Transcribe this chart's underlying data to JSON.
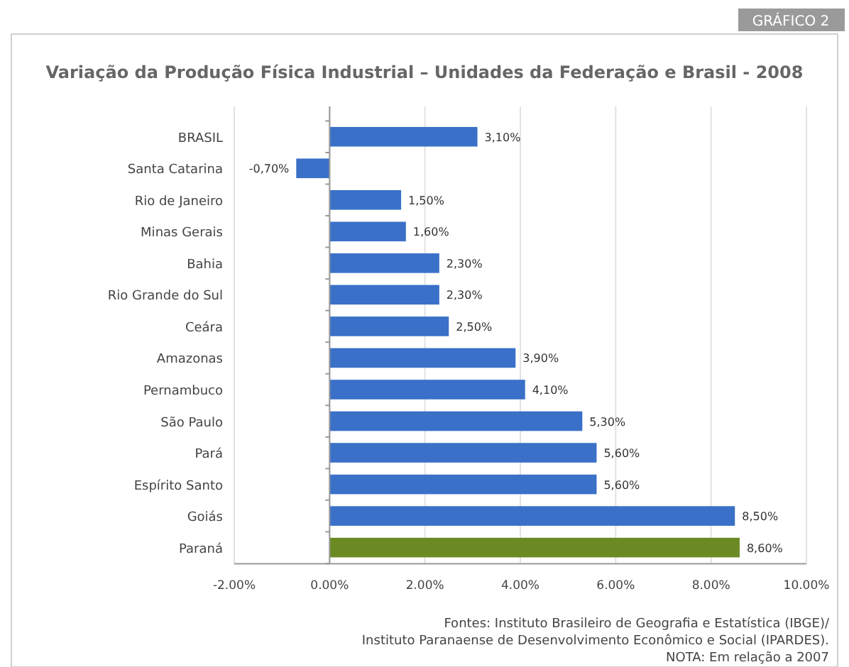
{
  "chart_data": {
    "type": "bar",
    "orientation": "horizontal",
    "title": "Variação da Produção Física Industrial – Unidades da Federação e Brasil - 2008",
    "categories": [
      "BRASIL",
      "Santa Catarina",
      "Rio de Janeiro",
      "Minas Gerais",
      "Bahia",
      "Rio Grande do Sul",
      "Ceára",
      "Amazonas",
      "Pernambuco",
      "São Paulo",
      "Pará",
      "Espírito Santo",
      "Goiás",
      "Paraná"
    ],
    "values": [
      3.1,
      -0.7,
      1.5,
      1.6,
      2.3,
      2.3,
      2.5,
      3.9,
      4.1,
      5.3,
      5.6,
      5.6,
      8.5,
      8.6
    ],
    "colors": [
      "#3a70c8",
      "#3a70c8",
      "#3a70c8",
      "#3a70c8",
      "#3a70c8",
      "#3a70c8",
      "#3a70c8",
      "#3a70c8",
      "#3a70c8",
      "#3a70c8",
      "#3a70c8",
      "#3a70c8",
      "#3a70c8",
      "#6b8a24"
    ],
    "value_labels": [
      "3,10%",
      "-0,70%",
      "1,50%",
      "1,60%",
      "2,30%",
      "2,30%",
      "2,50%",
      "3,90%",
      "4,10%",
      "5,30%",
      "5,60%",
      "5,60%",
      "8,50%",
      "8,60%"
    ],
    "xlim": [
      -2,
      10
    ],
    "xticks": [
      {
        "value": -2,
        "label": "-2.00%"
      },
      {
        "value": 0,
        "label": "0.00%"
      },
      {
        "value": 2,
        "label": "2.00%"
      },
      {
        "value": 4,
        "label": "4.00%"
      },
      {
        "value": 6,
        "label": "6.00%"
      },
      {
        "value": 8,
        "label": "8.00%"
      },
      {
        "value": 10,
        "label": "10.00%"
      }
    ],
    "grid": "x",
    "annotations": [
      "GRÁFICO 2",
      "Fontes: Instituto Brasileiro de Geografia e Estatística (IBGE)/",
      "Instituto Paranaense de Desenvolvimento Econômico e Social (IPARDES).",
      "NOTA: Em relação a 2007"
    ]
  }
}
